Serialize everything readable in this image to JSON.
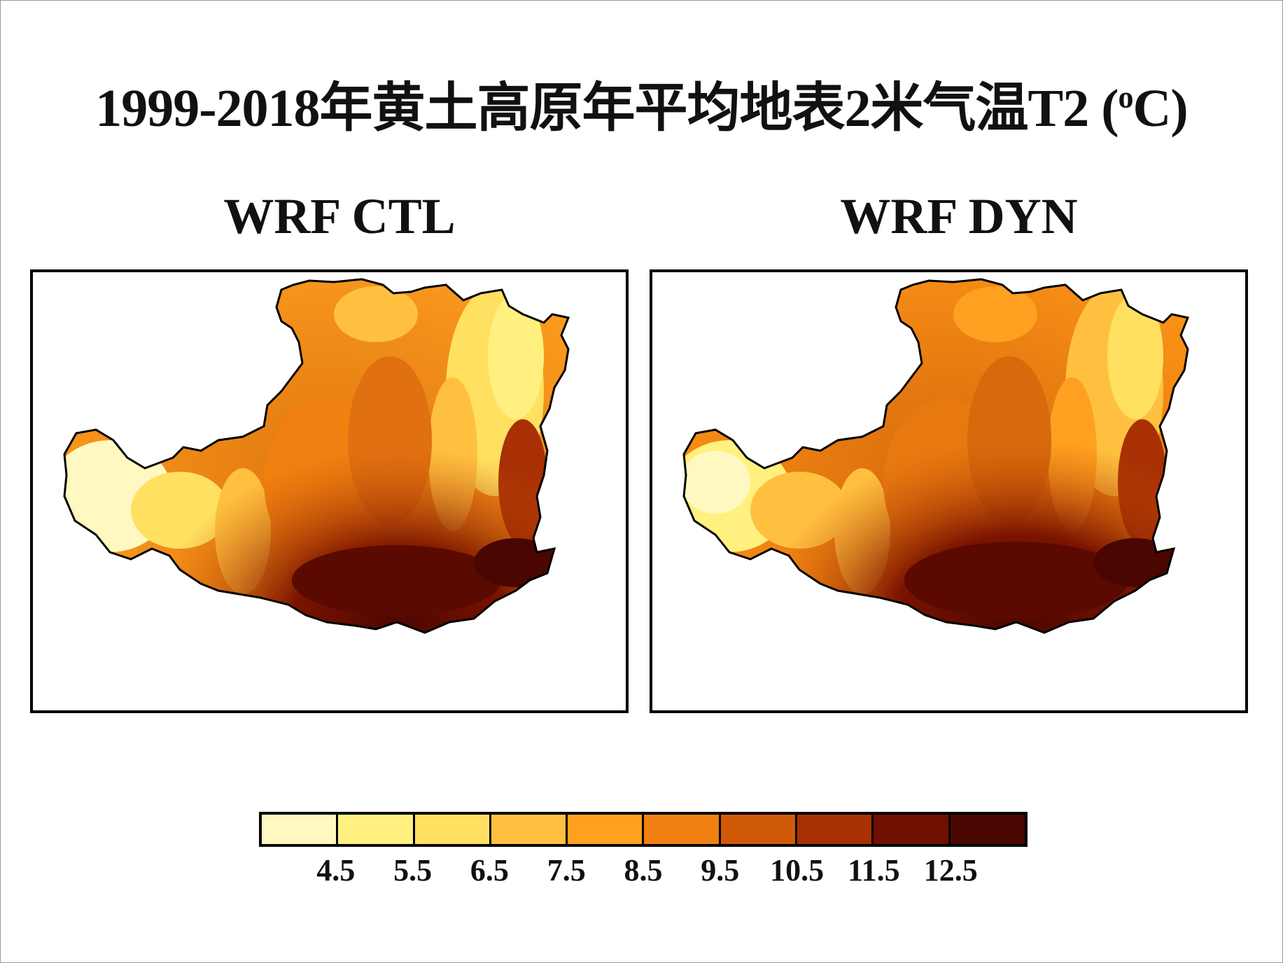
{
  "title": {
    "main": "1999-2018年黄土高原年平均地表2米气温T2 (",
    "sup": "o",
    "tail": "C)"
  },
  "panels": [
    {
      "label": "WRF CTL"
    },
    {
      "label": "WRF DYN"
    }
  ],
  "colorbar": {
    "colors": [
      "#fff8c0",
      "#fff080",
      "#ffe060",
      "#ffc040",
      "#ffa020",
      "#f08010",
      "#d05a08",
      "#a83004",
      "#701000",
      "#4a0600"
    ],
    "ticks": [
      "4.5",
      "5.5",
      "6.5",
      "7.5",
      "8.5",
      "9.5",
      "10.5",
      "11.5",
      "12.5"
    ]
  }
}
